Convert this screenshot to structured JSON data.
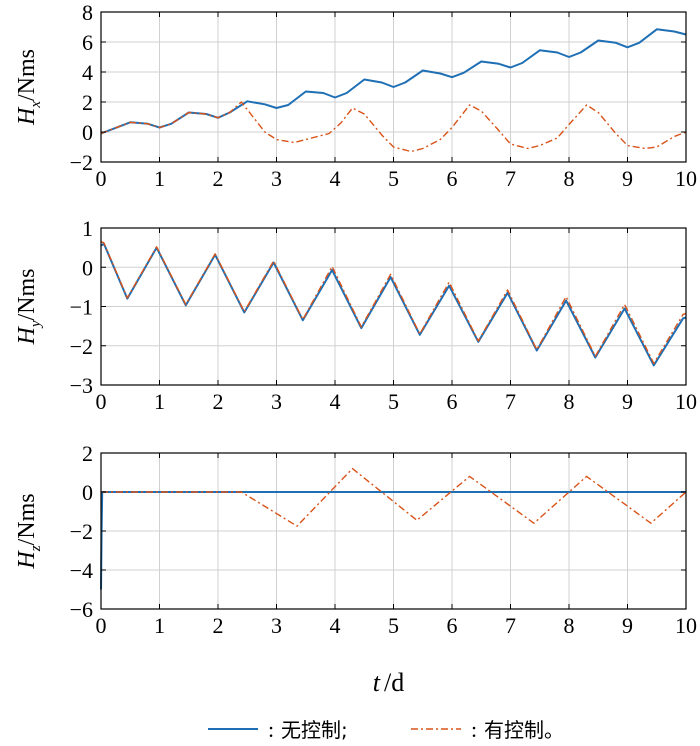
{
  "chart_data": {
    "type": "line",
    "xlabel": "t",
    "xunit": "d",
    "colors": {
      "uncontrolled": "#1f6fb4",
      "controlled": "#d95319"
    },
    "legend": {
      "placement": "bottom-center",
      "entries": [
        {
          "label": "无控制;",
          "separator": ":",
          "style": "solid",
          "color": "#1f6fb4"
        },
        {
          "label": "有控制。",
          "separator": ":",
          "style": "dashdot",
          "color": "#d95319"
        }
      ]
    },
    "panels": [
      {
        "id": "hx",
        "ylabel_main": "H",
        "ylabel_sub": "x",
        "ylabel_unit": "Nms",
        "xlim": [
          0,
          10
        ],
        "ylim": [
          -2,
          8
        ],
        "xticks": [
          0,
          1,
          2,
          3,
          4,
          5,
          6,
          7,
          8,
          9,
          10
        ],
        "yticks": [
          -2,
          0,
          2,
          4,
          6,
          8
        ],
        "grid": true,
        "series": [
          {
            "key": "uncontrolled",
            "x": [
              0,
              0.3,
              0.5,
              0.8,
              1.0,
              1.2,
              1.5,
              1.8,
              2.0,
              2.2,
              2.5,
              2.8,
              3.0,
              3.2,
              3.5,
              3.8,
              4.0,
              4.2,
              4.5,
              4.8,
              5.0,
              5.2,
              5.5,
              5.8,
              6.0,
              6.2,
              6.5,
              6.8,
              7.0,
              7.2,
              7.5,
              7.8,
              8.0,
              8.2,
              8.5,
              8.8,
              9.0,
              9.2,
              9.5,
              9.8,
              10.0
            ],
            "y": [
              -0.1,
              0.35,
              0.65,
              0.55,
              0.3,
              0.55,
              1.3,
              1.2,
              0.95,
              1.3,
              2.05,
              1.85,
              1.6,
              1.8,
              2.7,
              2.6,
              2.3,
              2.6,
              3.5,
              3.3,
              3.0,
              3.3,
              4.1,
              3.9,
              3.65,
              3.95,
              4.7,
              4.55,
              4.3,
              4.6,
              5.45,
              5.3,
              5.0,
              5.3,
              6.1,
              5.95,
              5.65,
              5.95,
              6.85,
              6.7,
              6.5
            ]
          },
          {
            "key": "controlled",
            "x": [
              0,
              0.3,
              0.5,
              0.8,
              1.0,
              1.2,
              1.5,
              1.8,
              2.0,
              2.2,
              2.4,
              2.6,
              2.8,
              3.0,
              3.3,
              3.6,
              3.9,
              4.1,
              4.3,
              4.5,
              4.8,
              5.0,
              5.3,
              5.5,
              5.8,
              6.0,
              6.3,
              6.5,
              6.8,
              7.0,
              7.3,
              7.5,
              7.8,
              8.0,
              8.3,
              8.5,
              8.8,
              9.0,
              9.3,
              9.5,
              9.8,
              10.0
            ],
            "y": [
              -0.1,
              0.35,
              0.65,
              0.55,
              0.3,
              0.55,
              1.3,
              1.2,
              0.95,
              1.3,
              2.0,
              1.0,
              0.0,
              -0.5,
              -0.7,
              -0.4,
              -0.1,
              0.6,
              1.6,
              1.2,
              -0.2,
              -1.0,
              -1.3,
              -1.1,
              -0.5,
              0.3,
              1.8,
              1.4,
              0.1,
              -0.8,
              -1.1,
              -0.9,
              -0.4,
              0.5,
              1.8,
              1.3,
              -0.1,
              -0.9,
              -1.1,
              -1.0,
              -0.3,
              0.0
            ]
          }
        ]
      },
      {
        "id": "hy",
        "ylabel_main": "H",
        "ylabel_sub": "y",
        "ylabel_unit": "Nms",
        "xlim": [
          0,
          10
        ],
        "ylim": [
          -3,
          1
        ],
        "xticks": [
          0,
          1,
          2,
          3,
          4,
          5,
          6,
          7,
          8,
          9,
          10
        ],
        "yticks": [
          -3,
          -2,
          -1,
          0,
          1
        ],
        "grid": true,
        "series": [
          {
            "key": "uncontrolled",
            "x": [
              0,
              0.05,
              0.45,
              0.95,
              1.45,
              1.95,
              2.45,
              2.95,
              3.45,
              3.95,
              4.45,
              4.95,
              5.45,
              5.95,
              6.45,
              6.95,
              7.45,
              7.95,
              8.45,
              8.95,
              9.45,
              9.95,
              10.0
            ],
            "y": [
              0.55,
              0.6,
              -0.8,
              0.5,
              -0.97,
              0.32,
              -1.15,
              0.12,
              -1.35,
              -0.07,
              -1.55,
              -0.25,
              -1.72,
              -0.47,
              -1.9,
              -0.65,
              -2.12,
              -0.85,
              -2.3,
              -1.05,
              -2.5,
              -1.3,
              -1.28
            ]
          },
          {
            "key": "controlled",
            "x": [
              0,
              0.05,
              0.45,
              0.95,
              1.45,
              1.95,
              2.45,
              2.95,
              3.45,
              3.95,
              4.45,
              4.95,
              5.45,
              5.95,
              6.45,
              6.95,
              7.45,
              7.95,
              8.45,
              8.95,
              9.45,
              9.95,
              10.0
            ],
            "y": [
              0.65,
              0.62,
              -0.78,
              0.52,
              -0.95,
              0.34,
              -1.13,
              0.16,
              -1.33,
              0.02,
              -1.52,
              -0.18,
              -1.7,
              -0.38,
              -1.88,
              -0.58,
              -2.1,
              -0.75,
              -2.27,
              -0.95,
              -2.45,
              -1.2,
              -1.18
            ]
          }
        ]
      },
      {
        "id": "hz",
        "ylabel_main": "H",
        "ylabel_sub": "z",
        "ylabel_unit": "Nms",
        "xlim": [
          0,
          10
        ],
        "ylim": [
          -6,
          2
        ],
        "xticks": [
          0,
          1,
          2,
          3,
          4,
          5,
          6,
          7,
          8,
          9,
          10
        ],
        "yticks": [
          -6,
          -4,
          -2,
          0,
          2
        ],
        "grid": true,
        "series": [
          {
            "key": "uncontrolled",
            "x": [
              0.0,
              0.01,
              0.02,
              10.0
            ],
            "y": [
              -5.0,
              -2.0,
              0.0,
              0.0
            ]
          },
          {
            "key": "controlled",
            "x": [
              0,
              2.4,
              3.35,
              4.3,
              5.4,
              6.3,
              7.4,
              8.3,
              9.4,
              10.0
            ],
            "y": [
              0,
              0,
              -1.75,
              1.2,
              -1.45,
              0.8,
              -1.6,
              0.8,
              -1.6,
              0.0
            ]
          }
        ]
      }
    ]
  }
}
